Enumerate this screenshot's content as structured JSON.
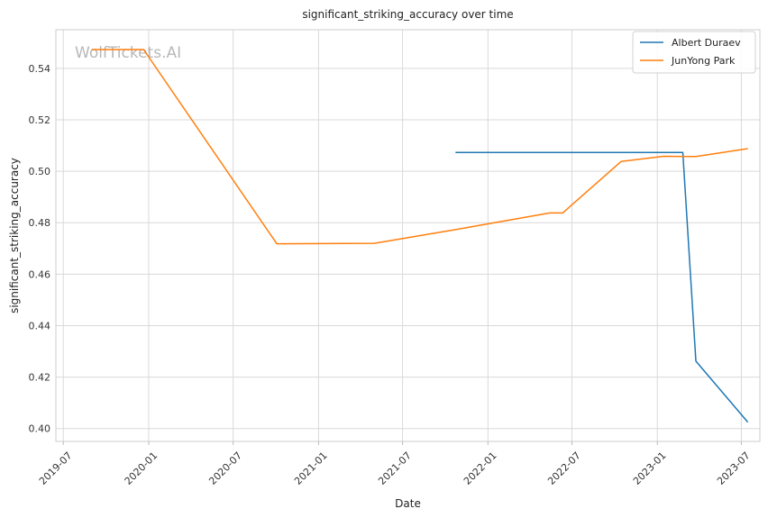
{
  "chart_data": {
    "type": "line",
    "title": "significant_striking_accuracy over time",
    "xlabel": "Date",
    "ylabel": "significant_striking_accuracy",
    "watermark": "WolfTickets.AI",
    "grid": true,
    "legend_position": "top-right",
    "xlim": [
      "2019-06-15",
      "2023-08-10"
    ],
    "ylim": [
      0.395,
      0.555
    ],
    "x_ticks": [
      "2019-07",
      "2020-01",
      "2020-07",
      "2021-01",
      "2021-07",
      "2022-01",
      "2022-07",
      "2023-01",
      "2023-07"
    ],
    "y_ticks": [
      0.4,
      0.42,
      0.44,
      0.46,
      0.48,
      0.5,
      0.52,
      0.54
    ],
    "y_tick_labels": [
      "0.40",
      "0.42",
      "0.44",
      "0.46",
      "0.48",
      "0.50",
      "0.52",
      "0.54"
    ],
    "series": [
      {
        "name": "Albert Duraev",
        "color": "#1f77b4",
        "points": [
          [
            "2021-10-23",
            0.5073
          ],
          [
            "2023-02-25",
            0.5073
          ],
          [
            "2023-03-25",
            0.4262
          ],
          [
            "2023-07-15",
            0.4025
          ]
        ]
      },
      {
        "name": "JunYong Park",
        "color": "#ff7f0e",
        "points": [
          [
            "2019-08-31",
            0.5473
          ],
          [
            "2019-12-21",
            0.5473
          ],
          [
            "2020-10-03",
            0.4718
          ],
          [
            "2021-05-01",
            0.472
          ],
          [
            "2021-10-23",
            0.4773
          ],
          [
            "2022-05-14",
            0.4838
          ],
          [
            "2022-06-11",
            0.4838
          ],
          [
            "2022-10-15",
            0.5038
          ],
          [
            "2023-01-14",
            0.5058
          ],
          [
            "2023-03-25",
            0.5057
          ],
          [
            "2023-07-15",
            0.5088
          ]
        ]
      }
    ]
  }
}
